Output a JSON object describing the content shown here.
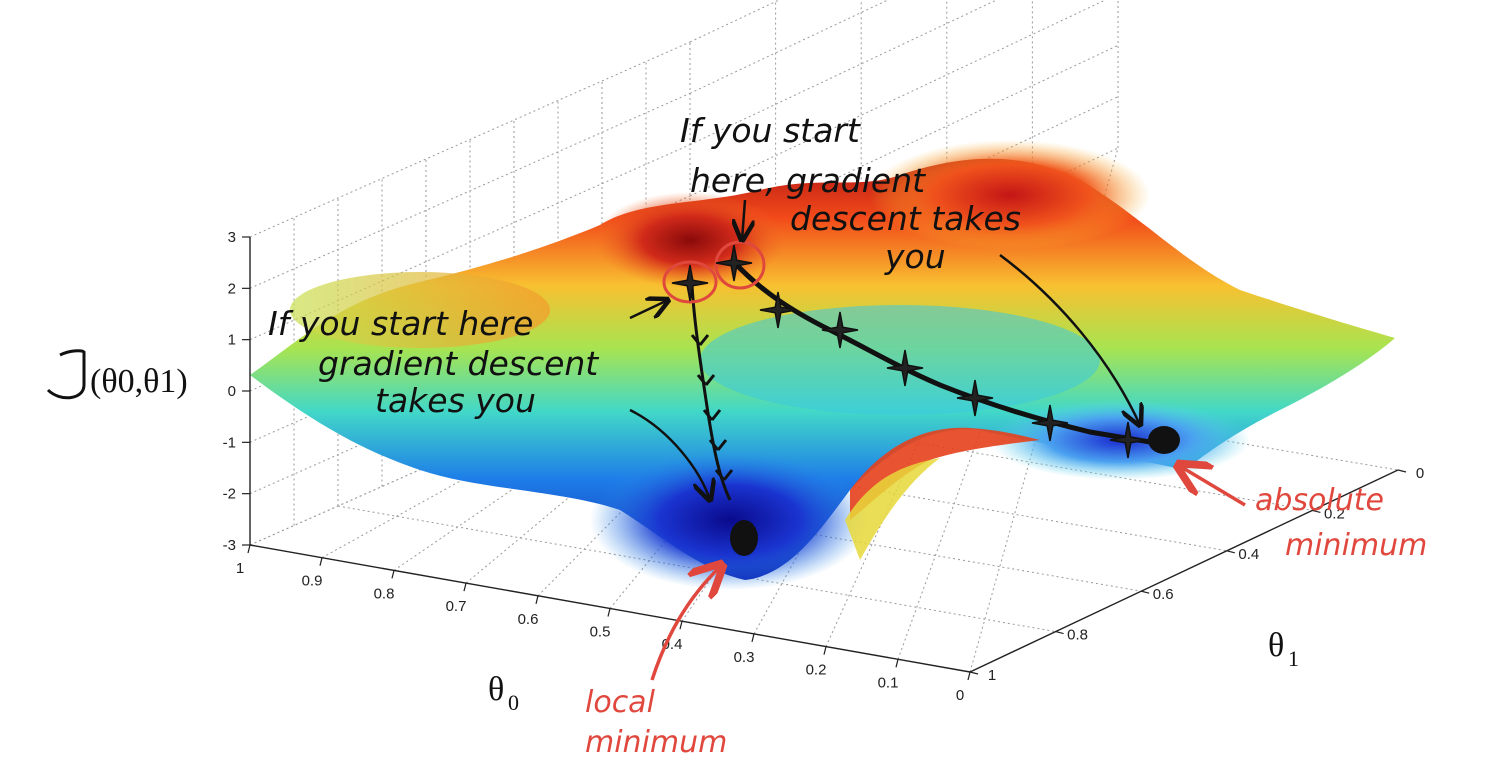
{
  "chart_data": {
    "type": "surface3d",
    "title": "",
    "zlabel": "J",
    "zlabel_args": "(θ0,θ1)",
    "xlabel": "θ",
    "xlabel_sub": "0",
    "ylabel": "θ",
    "ylabel_sub": "1",
    "z_ticks": [
      "3",
      "2",
      "1",
      "0",
      "-1",
      "-2",
      "-3"
    ],
    "zlim": [
      -3,
      3
    ],
    "theta0_ticks": [
      "1",
      "0.9",
      "0.8",
      "0.7",
      "0.6",
      "0.5",
      "0.4",
      "0.3",
      "0.2",
      "0.1",
      "0"
    ],
    "theta0_lim": [
      0,
      1
    ],
    "theta1_ticks": [
      "0",
      "0.2",
      "0.4",
      "0.6",
      "0.8",
      "1"
    ],
    "theta1_lim": [
      0,
      1
    ],
    "grid": true,
    "colormap": "jet",
    "colors": {
      "high": "#cc1a1a",
      "mid": "#e8e83a",
      "low": "#1030c8",
      "annotation": "#e0483e"
    },
    "annotations": [
      {
        "lines": [
          "If you start",
          "here, gradient",
          "descent takes",
          "you"
        ]
      },
      {
        "lines": [
          "If you start here",
          "gradient descent",
          "takes you"
        ]
      },
      {
        "lines": [
          "absolute",
          "minimum"
        ],
        "color": "annotation"
      },
      {
        "lines": [
          "local",
          "minimum"
        ],
        "color": "annotation"
      }
    ]
  }
}
